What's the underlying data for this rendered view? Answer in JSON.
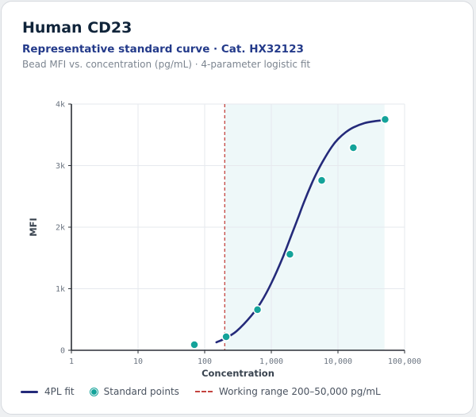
{
  "header": {
    "title": "Human CD23",
    "subtitle": "Representative standard curve · Cat. HX32123",
    "caption": "Bead MFI vs. concentration (pg/mL) · 4-parameter logistic fit"
  },
  "legend": {
    "fit_label": "4PL fit",
    "points_label": "Standard points",
    "range_label": "Working range 200–50,000 pg/mL"
  },
  "colors": {
    "fit": "#242a7a",
    "points": "#14a39a",
    "range_line": "#c4443f",
    "range_fill": "#eef8f9",
    "grid": "#e6e9ee",
    "axis": "#2b2f36"
  },
  "chart_data": {
    "type": "scatter",
    "x_scale": "log",
    "xlim": [
      1,
      100000
    ],
    "ylim": [
      0,
      4000
    ],
    "xlabel": "Concentration",
    "ylabel": "MFI",
    "x_ticks": [
      {
        "value": 1,
        "label": "1"
      },
      {
        "value": 10,
        "label": "10"
      },
      {
        "value": 100,
        "label": "100"
      },
      {
        "value": 1000,
        "label": "1,000"
      },
      {
        "value": 10000,
        "label": "10,000"
      },
      {
        "value": 100000,
        "label": "100,000"
      }
    ],
    "y_ticks": [
      {
        "value": 0,
        "label": "0"
      },
      {
        "value": 1000,
        "label": "1k"
      },
      {
        "value": 2000,
        "label": "2k"
      },
      {
        "value": 3000,
        "label": "3k"
      },
      {
        "value": 4000,
        "label": "4k"
      }
    ],
    "grid": true,
    "legend_position": "bottom",
    "working_range": {
      "low": 200,
      "high": 50000
    },
    "series": [
      {
        "name": "Standard points",
        "kind": "points",
        "x": [
          70,
          210,
          620,
          1900,
          5700,
          17000,
          51000
        ],
        "y": [
          90,
          220,
          660,
          1560,
          2760,
          3290,
          3750
        ]
      },
      {
        "name": "4PL fit",
        "kind": "curve",
        "x": [
          150,
          200,
          300,
          500,
          700,
          1000,
          1500,
          2000,
          2500,
          3000,
          4000,
          5000,
          6000,
          8000,
          10000,
          13000,
          17000,
          25000,
          35000,
          50000
        ],
        "y": [
          130,
          190,
          310,
          560,
          780,
          1090,
          1520,
          1870,
          2140,
          2370,
          2700,
          2920,
          3080,
          3300,
          3430,
          3540,
          3620,
          3690,
          3720,
          3740
        ]
      }
    ]
  }
}
